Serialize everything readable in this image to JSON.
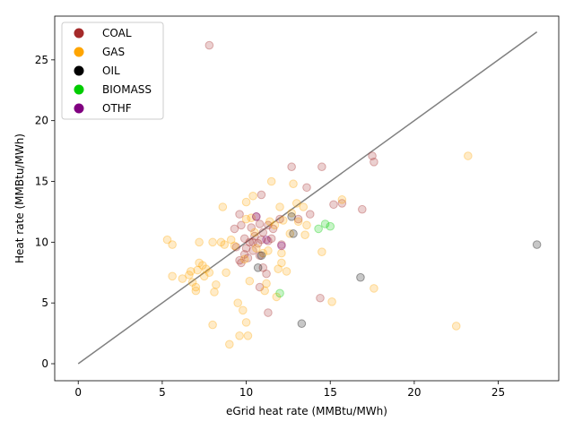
{
  "chart_data": {
    "type": "scatter",
    "xlabel": "eGrid heat rate (MMBtu/MWh)",
    "ylabel": "Heat rate (MMBtu/MWh)",
    "xlim": [
      -1.4,
      28.6
    ],
    "ylim": [
      -1.4,
      28.6
    ],
    "xticks": [
      0,
      5,
      10,
      15,
      20,
      25
    ],
    "yticks": [
      0,
      5,
      10,
      15,
      20,
      25
    ],
    "grid": false,
    "legend": "top-left",
    "reference_line": {
      "x": [
        0,
        27.3
      ],
      "y": [
        0,
        27.3
      ],
      "color": "#808080"
    },
    "series": [
      {
        "name": "COAL",
        "color": "#a52a2a",
        "points": [
          [
            7.8,
            26.2
          ],
          [
            9.6,
            12.3
          ],
          [
            10.6,
            12.1
          ],
          [
            10.9,
            13.9
          ],
          [
            12.7,
            16.2
          ],
          [
            14.5,
            16.2
          ],
          [
            17.5,
            17.1
          ],
          [
            17.6,
            16.6
          ],
          [
            16.9,
            12.7
          ],
          [
            15.2,
            13.1
          ],
          [
            15.7,
            13.2
          ],
          [
            13.6,
            14.5
          ],
          [
            13.8,
            12.3
          ],
          [
            13.1,
            11.9
          ],
          [
            12.0,
            11.9
          ],
          [
            11.3,
            11.4
          ],
          [
            11.0,
            10.8
          ],
          [
            10.5,
            10.5
          ],
          [
            10.2,
            10.0
          ],
          [
            10.7,
            9.9
          ],
          [
            11.3,
            10.1
          ],
          [
            10.4,
            9.3
          ],
          [
            9.9,
            9.0
          ],
          [
            9.4,
            9.6
          ],
          [
            9.6,
            8.5
          ],
          [
            9.7,
            8.3
          ],
          [
            10.1,
            8.7
          ],
          [
            10.8,
            8.9
          ],
          [
            11.0,
            7.9
          ],
          [
            10.8,
            6.3
          ],
          [
            11.2,
            7.4
          ],
          [
            12.1,
            9.8
          ],
          [
            14.4,
            5.4
          ],
          [
            11.3,
            4.2
          ],
          [
            9.3,
            11.1
          ],
          [
            9.7,
            11.4
          ],
          [
            10.3,
            11.2
          ],
          [
            10.8,
            11.5
          ],
          [
            11.6,
            11.1
          ],
          [
            9.9,
            10.3
          ],
          [
            10.4,
            10.0
          ],
          [
            10.9,
            10.2
          ],
          [
            11.5,
            10.3
          ],
          [
            10.0,
            9.5
          ]
        ]
      },
      {
        "name": "GAS",
        "color": "#ffa500",
        "points": [
          [
            5.3,
            10.2
          ],
          [
            5.6,
            9.8
          ],
          [
            5.6,
            7.2
          ],
          [
            6.2,
            7.0
          ],
          [
            6.6,
            7.3
          ],
          [
            6.7,
            7.6
          ],
          [
            6.8,
            6.7
          ],
          [
            7.0,
            6.0
          ],
          [
            7.0,
            6.3
          ],
          [
            7.1,
            7.7
          ],
          [
            7.2,
            8.3
          ],
          [
            7.2,
            10.0
          ],
          [
            7.4,
            8.1
          ],
          [
            7.5,
            7.2
          ],
          [
            7.6,
            7.8
          ],
          [
            7.8,
            7.5
          ],
          [
            8.0,
            10.0
          ],
          [
            8.0,
            3.2
          ],
          [
            8.1,
            5.9
          ],
          [
            8.2,
            6.5
          ],
          [
            8.5,
            10.0
          ],
          [
            8.6,
            12.9
          ],
          [
            8.7,
            9.8
          ],
          [
            8.8,
            7.5
          ],
          [
            9.0,
            1.6
          ],
          [
            9.1,
            10.2
          ],
          [
            9.3,
            9.7
          ],
          [
            9.5,
            5.0
          ],
          [
            9.6,
            2.3
          ],
          [
            9.8,
            4.4
          ],
          [
            10.0,
            3.4
          ],
          [
            10.1,
            2.3
          ],
          [
            10.0,
            13.3
          ],
          [
            10.0,
            11.9
          ],
          [
            10.3,
            12.0
          ],
          [
            10.4,
            13.8
          ],
          [
            10.2,
            6.8
          ],
          [
            10.6,
            9.5
          ],
          [
            11.0,
            9.1
          ],
          [
            11.1,
            6.0
          ],
          [
            11.2,
            6.6
          ],
          [
            11.3,
            9.3
          ],
          [
            11.5,
            15.0
          ],
          [
            11.7,
            11.4
          ],
          [
            11.8,
            5.5
          ],
          [
            11.9,
            7.8
          ],
          [
            12.0,
            12.9
          ],
          [
            12.1,
            8.3
          ],
          [
            12.2,
            11.8
          ],
          [
            12.4,
            7.6
          ],
          [
            12.6,
            10.7
          ],
          [
            12.7,
            12.4
          ],
          [
            12.8,
            14.8
          ],
          [
            13.0,
            13.2
          ],
          [
            13.1,
            11.7
          ],
          [
            13.4,
            12.9
          ],
          [
            13.5,
            10.6
          ],
          [
            13.6,
            11.4
          ],
          [
            14.5,
            9.2
          ],
          [
            15.1,
            5.1
          ],
          [
            15.7,
            13.5
          ],
          [
            17.6,
            6.2
          ],
          [
            22.5,
            3.1
          ],
          [
            23.2,
            17.1
          ],
          [
            12.1,
            9.1
          ],
          [
            10.5,
            10.8
          ],
          [
            9.9,
            8.6
          ],
          [
            11.4,
            11.7
          ]
        ]
      },
      {
        "name": "OIL",
        "color": "#000000",
        "points": [
          [
            27.3,
            9.8
          ],
          [
            16.8,
            7.1
          ],
          [
            13.3,
            3.3
          ],
          [
            12.8,
            10.7
          ],
          [
            12.7,
            12.1
          ],
          [
            10.7,
            7.9
          ],
          [
            10.9,
            8.9
          ]
        ]
      },
      {
        "name": "BIOMASS",
        "color": "#00cc00",
        "points": [
          [
            14.7,
            11.5
          ],
          [
            15.0,
            11.3
          ],
          [
            14.3,
            11.1
          ],
          [
            12.0,
            5.8
          ]
        ]
      },
      {
        "name": "OTHF",
        "color": "#800080",
        "points": [
          [
            10.6,
            12.1
          ],
          [
            12.1,
            9.7
          ],
          [
            11.2,
            10.2
          ]
        ]
      }
    ]
  }
}
